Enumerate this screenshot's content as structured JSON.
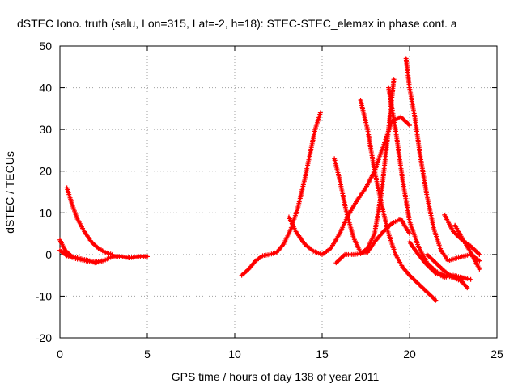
{
  "chart_data": {
    "type": "scatter",
    "title": "dSTEC Iono. truth (salu, Lon=315, Lat=-2, h=18): STEC-STEC_elemax in phase cont. a",
    "xlabel": "GPS time / hours of day 138 of year 2011",
    "ylabel": "dSTEC  / TECUs",
    "xlim": [
      0,
      25
    ],
    "ylim": [
      -20,
      50
    ],
    "x_ticks": [
      0,
      5,
      10,
      15,
      20,
      25
    ],
    "y_ticks": [
      -20,
      -10,
      0,
      10,
      20,
      30,
      40,
      50
    ],
    "grid": true,
    "color": "#ff0000",
    "series": [
      {
        "x": [
          0.0,
          0.3,
          0.7,
          1.2,
          1.7,
          2.0,
          2.5,
          3.0,
          3.5,
          4.0,
          4.5,
          5.0
        ],
        "y": [
          3.5,
          1.0,
          -0.5,
          -1.0,
          -1.5,
          -2.0,
          -1.5,
          -0.5,
          -0.5,
          -0.8,
          -0.5,
          -0.5
        ]
      },
      {
        "x": [
          0.0,
          0.4,
          0.9,
          1.5,
          2.0,
          2.4
        ],
        "y": [
          1.0,
          -0.3,
          -1.0,
          -1.5,
          -1.8,
          -1.5
        ]
      },
      {
        "x": [
          0.4,
          0.7,
          1.0,
          1.4,
          1.8,
          2.2,
          2.6,
          3.0
        ],
        "y": [
          16.0,
          12.0,
          8.5,
          5.5,
          3.0,
          1.5,
          0.5,
          0.0
        ]
      },
      {
        "x": [
          10.4,
          10.8,
          11.2,
          11.6,
          12.0,
          12.4,
          12.8,
          13.2,
          13.6,
          14.0,
          14.3,
          14.6,
          14.9
        ],
        "y": [
          -5.0,
          -3.5,
          -1.5,
          -0.3,
          0.0,
          0.5,
          2.5,
          6.0,
          11.0,
          18.0,
          24.0,
          30.0,
          34.0
        ]
      },
      {
        "x": [
          13.1,
          13.5,
          14.0,
          14.5,
          15.0,
          15.5,
          16.0,
          16.5,
          17.0,
          17.5,
          18.0,
          18.5,
          19.0,
          19.5,
          20.0
        ],
        "y": [
          9.0,
          5.5,
          2.5,
          0.8,
          0.0,
          1.5,
          5.0,
          9.5,
          13.0,
          16.0,
          20.0,
          26.0,
          32.0,
          33.0,
          31.0
        ]
      },
      {
        "x": [
          15.7,
          16.0,
          16.4,
          16.8,
          17.2,
          17.6,
          18.0,
          18.5,
          19.0,
          19.5,
          20.0
        ],
        "y": [
          23.0,
          18.0,
          10.0,
          4.0,
          0.5,
          0.5,
          3.0,
          5.5,
          7.5,
          8.5,
          5.0
        ]
      },
      {
        "x": [
          17.2,
          17.6,
          18.0,
          18.4,
          18.8,
          19.2,
          19.6,
          20.0,
          20.5,
          21.0,
          21.5
        ],
        "y": [
          37.0,
          30.0,
          20.0,
          12.0,
          5.0,
          0.0,
          -3.0,
          -5.0,
          -7.0,
          -9.0,
          -11.0
        ]
      },
      {
        "x": [
          15.8,
          16.3,
          16.8,
          17.2,
          17.6,
          18.0,
          18.4,
          18.8,
          19.1
        ],
        "y": [
          -2.0,
          0.0,
          0.0,
          0.2,
          1.5,
          5.0,
          15.0,
          30.0,
          42.0
        ]
      },
      {
        "x": [
          18.8,
          19.2,
          19.6,
          20.0,
          20.5,
          21.0,
          21.5,
          22.0,
          22.5,
          23.0,
          23.3
        ],
        "y": [
          40.0,
          30.0,
          18.0,
          8.0,
          2.0,
          -2.0,
          -4.0,
          -5.0,
          -5.5,
          -6.5,
          -8.0
        ]
      },
      {
        "x": [
          19.8,
          20.0,
          20.3,
          20.6,
          21.0,
          21.4,
          21.8,
          22.2,
          22.6,
          23.0,
          23.5,
          24.0
        ],
        "y": [
          47.0,
          40.0,
          33.0,
          24.0,
          14.0,
          6.0,
          1.0,
          -1.5,
          -1.0,
          -0.5,
          0.0,
          -1.5
        ]
      },
      {
        "x": [
          20.0,
          20.5,
          21.0,
          21.5,
          22.0,
          22.5,
          23.0,
          23.5
        ],
        "y": [
          3.0,
          0.0,
          -2.5,
          -4.5,
          -5.5,
          -5.0,
          -5.5,
          -6.0
        ]
      },
      {
        "x": [
          21.0,
          21.5,
          22.0,
          22.5,
          23.0
        ],
        "y": [
          0.0,
          -2.0,
          -4.0,
          -5.5,
          -6.0
        ]
      },
      {
        "x": [
          22.0,
          22.5,
          23.0,
          23.5,
          24.0
        ],
        "y": [
          9.5,
          5.5,
          3.5,
          2.0,
          0.0
        ]
      },
      {
        "x": [
          22.6,
          23.0,
          23.5,
          24.0
        ],
        "y": [
          7.0,
          4.0,
          0.5,
          -3.5
        ]
      }
    ]
  }
}
